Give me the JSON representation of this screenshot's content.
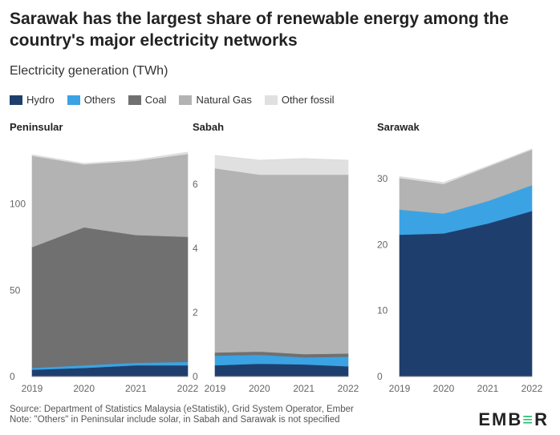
{
  "title": "Sarawak has the largest share of renewable energy among the country's major electricity networks",
  "subtitle": "Electricity generation (TWh)",
  "legend": [
    {
      "name": "Hydro",
      "color": "#1e3f6e"
    },
    {
      "name": "Others",
      "color": "#3ba3e3"
    },
    {
      "name": "Coal",
      "color": "#707070"
    },
    {
      "name": "Natural Gas",
      "color": "#b3b3b3"
    },
    {
      "name": "Other fossil",
      "color": "#e0e0e0"
    }
  ],
  "footer": {
    "source": "Source: Department of Statistics Malaysia (eStatistik), Grid System Operator, Ember",
    "note": "Note: \"Others\" in Peninsular include solar, in Sabah and Sarawak is not specified"
  },
  "logo": {
    "prefix": "EMB",
    "mark": "≡",
    "suffix": "R"
  },
  "chart_data": [
    {
      "type": "area",
      "stacked": true,
      "title": "Peninsular",
      "x": [
        "2019",
        "2020",
        "2021",
        "2022"
      ],
      "ylim": [
        0,
        130
      ],
      "yticks": [
        0,
        50,
        100
      ],
      "series": [
        {
          "name": "Hydro",
          "color": "#1e3f6e",
          "values": [
            4,
            5,
            6.5,
            6.5
          ]
        },
        {
          "name": "Others",
          "color": "#3ba3e3",
          "values": [
            1,
            1.5,
            1.5,
            2
          ]
        },
        {
          "name": "Coal",
          "color": "#707070",
          "values": [
            70,
            80,
            74,
            72.5
          ]
        },
        {
          "name": "Natural Gas",
          "color": "#b3b3b3",
          "values": [
            53,
            36.5,
            43,
            48
          ]
        },
        {
          "name": "Other fossil",
          "color": "#e0e0e0",
          "values": [
            0.5,
            0.5,
            0.5,
            1
          ]
        }
      ]
    },
    {
      "type": "area",
      "stacked": true,
      "title": "Sabah",
      "x": [
        "2019",
        "2020",
        "2021",
        "2022"
      ],
      "ylim": [
        0,
        7
      ],
      "yticks": [
        0,
        2,
        4,
        6
      ],
      "series": [
        {
          "name": "Hydro",
          "color": "#1e3f6e",
          "values": [
            0.35,
            0.4,
            0.38,
            0.32
          ]
        },
        {
          "name": "Others",
          "color": "#3ba3e3",
          "values": [
            0.3,
            0.28,
            0.22,
            0.3
          ]
        },
        {
          "name": "Coal",
          "color": "#707070",
          "values": [
            0.1,
            0.1,
            0.1,
            0.1
          ]
        },
        {
          "name": "Natural Gas",
          "color": "#b3b3b3",
          "values": [
            5.75,
            5.52,
            5.6,
            5.58
          ]
        },
        {
          "name": "Other fossil",
          "color": "#e0e0e0",
          "values": [
            0.4,
            0.45,
            0.5,
            0.45
          ]
        }
      ]
    },
    {
      "type": "area",
      "stacked": true,
      "title": "Sarawak",
      "x": [
        "2019",
        "2020",
        "2021",
        "2022"
      ],
      "ylim": [
        0,
        34
      ],
      "yticks": [
        0,
        10,
        20,
        30
      ],
      "series": [
        {
          "name": "Hydro",
          "color": "#1e3f6e",
          "values": [
            21.5,
            21.7,
            23.2,
            25.1
          ]
        },
        {
          "name": "Others",
          "color": "#3ba3e3",
          "values": [
            3.8,
            3,
            3.4,
            3.9
          ]
        },
        {
          "name": "Coal",
          "color": "#707070",
          "values": [
            0,
            0,
            0,
            0
          ]
        },
        {
          "name": "Natural Gas",
          "color": "#b3b3b3",
          "values": [
            4.8,
            4.5,
            5.2,
            5.4
          ]
        },
        {
          "name": "Other fossil",
          "color": "#e0e0e0",
          "values": [
            0.2,
            0.2,
            0.1,
            0.1
          ]
        }
      ]
    }
  ]
}
